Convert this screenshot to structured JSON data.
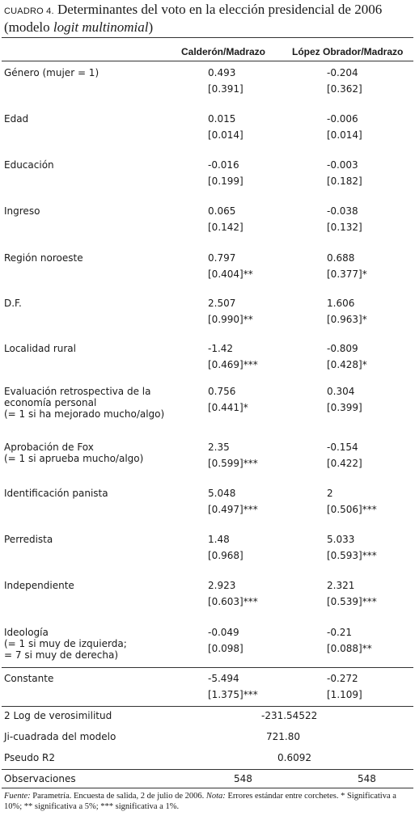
{
  "title": {
    "label": "CUADRO 4.",
    "text": "Determinantes del voto en la elección presidencial de 2006",
    "sub_prefix": "(modelo ",
    "sub_italic": "logit multinomial",
    "sub_suffix": ")"
  },
  "headers": [
    "Calderón/Madrazo",
    "López Obrador/Madrazo"
  ],
  "rows": [
    {
      "label": "Género (mujer = 1)",
      "c1": "0.493",
      "c1se": "[0.391]",
      "c2": "-0.204",
      "c2se": "[0.362]"
    },
    {
      "label": "Edad",
      "c1": "0.015",
      "c1se": "[0.014]",
      "c2": "-0.006",
      "c2se": "[0.014]"
    },
    {
      "label": "Educación",
      "c1": "-0.016",
      "c1se": "[0.199]",
      "c2": "-0.003",
      "c2se": "[0.182]"
    },
    {
      "label": "Ingreso",
      "c1": "0.065",
      "c1se": "[0.142]",
      "c2": "-0.038",
      "c2se": "[0.132]"
    },
    {
      "label": "Región noroeste",
      "c1": "0.797",
      "c1se": "[0.404]**",
      "c2": "0.688",
      "c2se": "[0.377]*"
    },
    {
      "label": "D.F.",
      "c1": "2.507",
      "c1se": "[0.990]**",
      "c2": "1.606",
      "c2se": "[0.963]*"
    },
    {
      "label": "Localidad rural",
      "c1": "-1.42",
      "c1se": "[0.469]***",
      "c2": "-0.809",
      "c2se": "[0.428]*"
    },
    {
      "label": "Evaluación retrospectiva de la\neconomía personal\n(= 1 si ha mejorado mucho/algo)",
      "c1": "0.756",
      "c1se": "[0.441]*",
      "c2": "0.304",
      "c2se": "[0.399]"
    },
    {
      "label": "Aprobación de Fox\n(= 1 si aprueba mucho/algo)",
      "c1": "2.35",
      "c1se": "[0.599]***",
      "c2": "-0.154",
      "c2se": "[0.422]"
    },
    {
      "label": "Identificación panista",
      "c1": "5.048",
      "c1se": "[0.497]***",
      "c2": "2",
      "c2se": "[0.506]***"
    },
    {
      "label": "Perredista",
      "c1": "1.48",
      "c1se": "[0.968]",
      "c2": "5.033",
      "c2se": "[0.593]***"
    },
    {
      "label": "Independiente",
      "c1": "2.923",
      "c1se": "[0.603]***",
      "c2": "2.321",
      "c2se": "[0.539]***"
    },
    {
      "label": "Ideología\n(= 1 si muy de izquierda;\n= 7 si muy de derecha)",
      "c1": "-0.049",
      "c1se": "[0.098]",
      "c2": "-0.21",
      "c2se": "[0.088]**"
    },
    {
      "label": "Constante",
      "c1": "-5.494",
      "c1se": "[1.375]***",
      "c2": "-0.272",
      "c2se": "[1.109]"
    }
  ],
  "stats": [
    {
      "label": "2 Log de verosimilitud",
      "value": "-231.54522"
    },
    {
      "label": "Ji-cuadrada del modelo",
      "value": "721.80"
    },
    {
      "label": "Pseudo R2",
      "value": "0.6092"
    }
  ],
  "observations": {
    "label": "Observaciones",
    "c1": "548",
    "c2": "548"
  },
  "footnote": {
    "fuente_label": "Fuente:",
    "fuente_text": " Parametría. Encuesta de salida, 2 de julio de 2006. ",
    "nota_label": "Nota:",
    "nota_text": " Errores estándar entre corchetes. * Significativa a 10%; ** significativa a 5%; *** significativa a 1%."
  }
}
